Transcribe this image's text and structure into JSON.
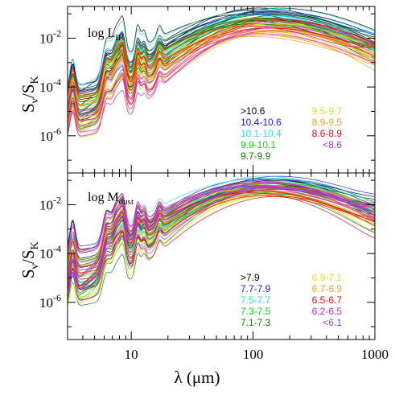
{
  "chart_data": [
    {
      "type": "line",
      "panel": "top",
      "panel_label": "log L",
      "panel_label_sub": "IR",
      "xlabel": "λ (μm)",
      "ylabel_main": "S",
      "ylabel_sub1": "ν",
      "ylabel_slash": "/S",
      "ylabel_sub2": "K",
      "x_scale": "log",
      "y_scale": "log",
      "xlim": [
        3,
        1000
      ],
      "ylim": [
        3e-08,
        0.2
      ],
      "x_ticks": [
        10,
        100,
        1000
      ],
      "x_tick_labels": [
        "10",
        "100",
        "1000"
      ],
      "y_ticks": [
        1e-06,
        0.0001,
        0.01
      ],
      "y_tick_labels": [
        {
          "base": "10",
          "exp": "-6"
        },
        {
          "base": "10",
          "exp": "-4"
        },
        {
          "base": "10",
          "exp": "-2"
        }
      ],
      "grid": false,
      "legend_placement": "lower-right",
      "series": [
        {
          "name": ">10.6",
          "color": "#000000",
          "peak": 0.09,
          "count": 7
        },
        {
          "name": "10.4-10.6",
          "color": "#2222cc",
          "peak": 0.07,
          "count": 7
        },
        {
          "name": "10.1-10.4",
          "color": "#33dddd",
          "peak": 0.12,
          "count": 8
        },
        {
          "name": "9.9-10.1",
          "color": "#22cc22",
          "peak": 0.06,
          "count": 9
        },
        {
          "name": "9.7-9.9",
          "color": "#117711",
          "peak": 0.05,
          "count": 7
        },
        {
          "name": "9.5-9.7",
          "color": "#dddd22",
          "peak": 0.035,
          "count": 8
        },
        {
          "name": "8.9-9.5",
          "color": "#ff9922",
          "peak": 0.02,
          "count": 10
        },
        {
          "name": "8.6-8.9",
          "color": "#dd1111",
          "peak": 0.04,
          "count": 6
        },
        {
          "name": "<8.6",
          "color": "#cc22cc",
          "peak": 0.03,
          "count": 5
        }
      ]
    },
    {
      "type": "line",
      "panel": "bottom",
      "panel_label": "log M",
      "panel_label_sub": "dust",
      "xlabel": "λ (μm)",
      "ylabel_main": "S",
      "ylabel_sub1": "ν",
      "ylabel_slash": "/S",
      "ylabel_sub2": "K",
      "x_scale": "log",
      "y_scale": "log",
      "xlim": [
        3,
        1000
      ],
      "ylim": [
        3e-08,
        0.2
      ],
      "x_ticks": [
        10,
        100,
        1000
      ],
      "x_tick_labels": [
        "10",
        "100",
        "1000"
      ],
      "y_ticks": [
        1e-06,
        0.0001,
        0.01
      ],
      "y_tick_labels": [
        {
          "base": "10",
          "exp": "-6"
        },
        {
          "base": "10",
          "exp": "-4"
        },
        {
          "base": "10",
          "exp": "-2"
        }
      ],
      "grid": false,
      "legend_placement": "lower-right",
      "series": [
        {
          "name": ">7.9",
          "color": "#000000",
          "peak": 0.1,
          "count": 6
        },
        {
          "name": "7.7-7.9",
          "color": "#2222cc",
          "peak": 0.09,
          "count": 6
        },
        {
          "name": "7.5-7.7",
          "color": "#33dddd",
          "peak": 0.08,
          "count": 7
        },
        {
          "name": "7.3-7.5",
          "color": "#22cc22",
          "peak": 0.06,
          "count": 8
        },
        {
          "name": "7.1-7.3",
          "color": "#117711",
          "peak": 0.05,
          "count": 8
        },
        {
          "name": "6.9-7.1",
          "color": "#dddd22",
          "peak": 0.04,
          "count": 8
        },
        {
          "name": "6.7-6.9",
          "color": "#ff9922",
          "peak": 0.04,
          "count": 8
        },
        {
          "name": "6.5-6.7",
          "color": "#dd1111",
          "peak": 0.03,
          "count": 6
        },
        {
          "name": "6.2-6.5",
          "color": "#cc22cc",
          "peak": 0.05,
          "count": 6
        },
        {
          "name": "<6.1",
          "color": "#aa33ee",
          "peak": 0.04,
          "count": 5
        }
      ]
    }
  ]
}
